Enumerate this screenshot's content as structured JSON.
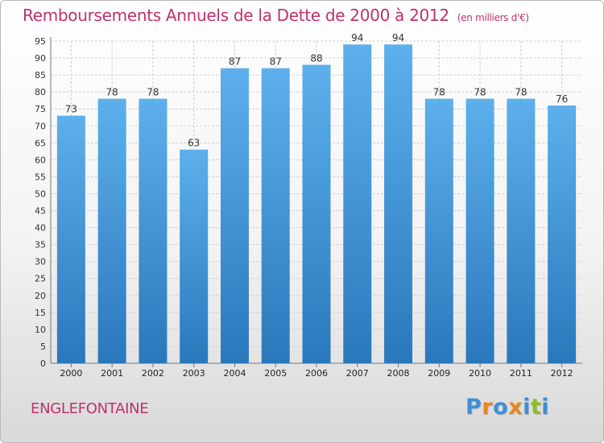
{
  "chart_data": {
    "type": "bar",
    "title": "Remboursements Annuels de la Dette de 2000 à 2012",
    "subtitle": "(en milliers d'€)",
    "categories": [
      "2000",
      "2001",
      "2002",
      "2003",
      "2004",
      "2005",
      "2006",
      "2007",
      "2008",
      "2009",
      "2010",
      "2011",
      "2012"
    ],
    "values": [
      73,
      78,
      78,
      63,
      87,
      87,
      88,
      94,
      94,
      78,
      78,
      78,
      76
    ],
    "ylim": [
      0,
      95
    ],
    "yticks": [
      0,
      5,
      10,
      15,
      20,
      25,
      30,
      35,
      40,
      45,
      50,
      55,
      60,
      65,
      70,
      75,
      80,
      85,
      90,
      95
    ],
    "grid": true,
    "xlabel": "",
    "ylabel": ""
  },
  "commune": "ENGLEFONTAINE",
  "logo": {
    "text": "Proxiti",
    "letters": [
      "P",
      "r",
      "o",
      "x",
      "i",
      "t",
      "i"
    ],
    "colors": [
      "#3e8fd6",
      "#e6871f",
      "#3e8fd6",
      "#e6871f",
      "#3e8fd6",
      "#8dbd24",
      "#3e8fd6"
    ]
  },
  "colors": {
    "bar_light": "#5db0ec",
    "bar_dark": "#2a78bc",
    "title": "#c0306e",
    "grid": "#cfcfcf"
  }
}
